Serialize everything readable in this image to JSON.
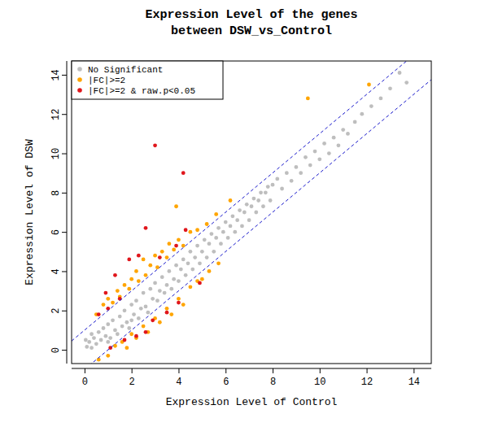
{
  "chart_data": {
    "type": "scatter",
    "title": "Expression Level of the genes\nbetween DSW_vs_Control",
    "x_label": "Expression Level of Control",
    "y_label": "Expression Level of DSW",
    "xlim": [
      -0.55,
      14.75
    ],
    "ylim": [
      -0.7,
      14.7
    ],
    "xticks": [
      0,
      2,
      4,
      6,
      8,
      10,
      12,
      14
    ],
    "yticks": [
      0,
      2,
      4,
      6,
      8,
      10,
      12,
      14
    ],
    "grid": false,
    "legend": "top-left",
    "marker": "circle",
    "reference_lines": [
      {
        "slope": 1,
        "intercept": 1
      },
      {
        "slope": 1,
        "intercept": -1
      }
    ],
    "series": [
      {
        "name": "No Significant",
        "color": "#bebebe",
        "x": [
          0.1,
          0.2,
          0.3,
          0.4,
          0.5,
          0.6,
          0.7,
          0.8,
          0.9,
          1.0,
          1.1,
          1.2,
          1.3,
          1.4,
          1.5,
          1.6,
          1.7,
          1.8,
          1.9,
          2.0,
          2.1,
          2.2,
          2.3,
          2.4,
          2.5,
          2.6,
          2.7,
          2.8,
          2.9,
          3.0,
          3.1,
          3.2,
          3.3,
          3.4,
          3.5,
          3.6,
          3.7,
          3.8,
          3.9,
          4.0,
          4.1,
          4.2,
          4.3,
          4.4,
          4.5,
          4.6,
          4.7,
          4.8,
          4.9,
          5.0,
          5.1,
          5.2,
          5.3,
          5.4,
          5.5,
          5.6,
          5.7,
          5.8,
          5.9,
          6.0,
          6.1,
          6.2,
          6.3,
          6.4,
          6.5,
          6.6,
          6.7,
          6.8,
          6.9,
          7.0,
          7.1,
          7.2,
          7.3,
          7.4,
          7.5,
          7.6,
          7.7,
          7.8,
          7.9,
          8.0,
          8.2,
          8.4,
          8.6,
          8.8,
          9.0,
          9.2,
          9.4,
          9.6,
          9.8,
          10.0,
          10.2,
          10.4,
          10.6,
          10.8,
          11.0,
          11.2,
          11.5,
          11.8,
          12.2,
          12.6,
          13.0,
          13.4,
          13.7,
          0.05,
          0.3,
          1.0,
          2.0
        ],
        "values": [
          0.15,
          0.4,
          0.1,
          0.6,
          0.3,
          0.9,
          0.5,
          1.1,
          0.7,
          1.3,
          0.6,
          1.5,
          1.0,
          0.8,
          1.7,
          1.2,
          2.0,
          1.4,
          1.1,
          2.3,
          1.8,
          2.5,
          1.6,
          2.1,
          2.9,
          2.2,
          1.9,
          3.1,
          2.6,
          3.4,
          2.5,
          3.0,
          3.7,
          2.9,
          3.3,
          4.0,
          3.1,
          3.6,
          4.3,
          3.5,
          4.1,
          4.6,
          3.8,
          4.4,
          5.0,
          4.1,
          4.7,
          5.3,
          4.4,
          5.0,
          5.6,
          4.7,
          5.4,
          5.9,
          5.0,
          5.7,
          6.2,
          5.4,
          6.0,
          6.5,
          5.7,
          6.3,
          6.8,
          6.0,
          6.6,
          7.1,
          6.3,
          7.0,
          7.4,
          6.6,
          7.3,
          7.7,
          7.0,
          7.6,
          8.0,
          7.3,
          8.0,
          8.3,
          7.6,
          8.4,
          8.7,
          8.2,
          9.0,
          8.6,
          9.3,
          9.0,
          9.8,
          9.4,
          10.1,
          9.7,
          10.5,
          10.0,
          10.8,
          10.4,
          11.2,
          11.0,
          11.6,
          12.0,
          12.4,
          12.8,
          13.3,
          14.1,
          13.6,
          0.5,
          0.8,
          0.4,
          1.5
        ]
      },
      {
        "name": "|FC|>=2",
        "color": "#ffa500",
        "x": [
          0.5,
          0.8,
          1.0,
          1.2,
          1.4,
          1.5,
          1.7,
          1.9,
          2.0,
          2.2,
          2.3,
          2.5,
          2.6,
          2.8,
          3.0,
          3.1,
          3.3,
          3.5,
          3.6,
          3.8,
          4.0,
          4.2,
          4.5,
          4.8,
          5.2,
          5.6,
          6.2,
          9.5,
          12.1,
          3.9,
          0.6,
          1.0,
          1.3,
          1.6,
          1.8,
          2.0,
          2.2,
          2.5,
          2.7,
          3.0,
          3.2,
          3.5,
          3.7,
          4.0,
          4.2,
          4.5,
          4.8,
          5.0,
          5.3,
          5.7
        ],
        "values": [
          1.8,
          2.3,
          2.6,
          2.4,
          3.0,
          2.7,
          3.3,
          3.1,
          3.6,
          4.0,
          3.5,
          4.6,
          3.8,
          4.3,
          4.8,
          4.2,
          5.0,
          4.7,
          5.4,
          5.1,
          5.6,
          5.3,
          6.0,
          6.1,
          6.4,
          6.9,
          7.6,
          12.8,
          13.5,
          7.3,
          -0.5,
          -0.3,
          0.2,
          0.4,
          0.1,
          0.8,
          0.6,
          1.2,
          0.9,
          1.6,
          1.4,
          2.1,
          1.8,
          2.6,
          2.3,
          3.2,
          3.5,
          3.6,
          4.0,
          4.4
        ]
      },
      {
        "name": "|FC|>=2 & raw.p<0.05",
        "color": "#e0161c",
        "x": [
          3.0,
          4.2,
          2.6,
          4.3,
          1.9,
          2.3,
          1.3,
          0.9,
          1.0,
          1.5,
          3.2,
          3.9,
          0.6,
          2.9,
          2.6,
          1.7,
          4.0,
          4.9,
          3.5,
          1.1,
          2.2
        ],
        "values": [
          10.4,
          9.0,
          6.2,
          6.1,
          4.6,
          4.8,
          3.8,
          2.9,
          2.1,
          2.6,
          4.7,
          5.3,
          1.8,
          1.5,
          0.9,
          0.5,
          2.4,
          3.4,
          1.9,
          0.1,
          0.7
        ]
      }
    ]
  }
}
